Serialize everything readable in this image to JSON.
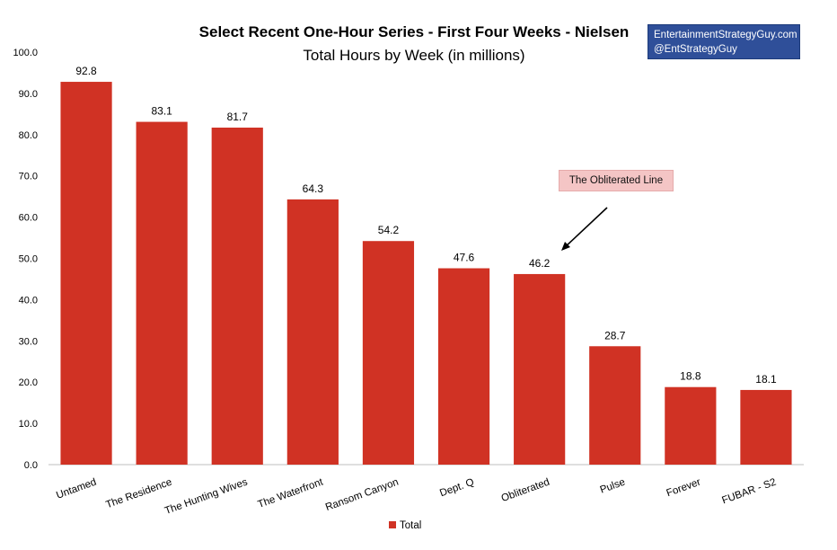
{
  "credit": {
    "line1": "EntertainmentStrategyGuy.com",
    "line2": "@EntStrategyGuy"
  },
  "annotation": {
    "text": "The Obliterated Line",
    "points_to": "Obliterated"
  },
  "colors": {
    "bar": "#d03224",
    "credit_box": "#2f4f99",
    "annotation_box": "#f4c5c5"
  },
  "chart_data": {
    "type": "bar",
    "title": "Select Recent One-Hour Series - First Four Weeks - Nielsen",
    "subtitle": "Total Hours by Week (in millions)",
    "categories": [
      "Untamed",
      "The Residence",
      "The Hunting Wives",
      "The Waterfront",
      "Ransom Canyon",
      "Dept. Q",
      "Obliterated",
      "Pulse",
      "Forever",
      "FUBAR - S2"
    ],
    "series": [
      {
        "name": "Total",
        "values": [
          92.8,
          83.1,
          81.7,
          64.3,
          54.2,
          47.6,
          46.2,
          28.7,
          18.8,
          18.1
        ]
      }
    ],
    "data_labels": [
      "92.8",
      "83.1",
      "81.7",
      "64.3",
      "54.2",
      "47.6",
      "46.2",
      "28.7",
      "18.8",
      "18.1"
    ],
    "yticks": [
      "0.0",
      "10.0",
      "20.0",
      "30.0",
      "40.0",
      "50.0",
      "60.0",
      "70.0",
      "80.0",
      "90.0",
      "100.0"
    ],
    "ylim": [
      0,
      100
    ],
    "grid": false,
    "legend_position": "bottom"
  }
}
